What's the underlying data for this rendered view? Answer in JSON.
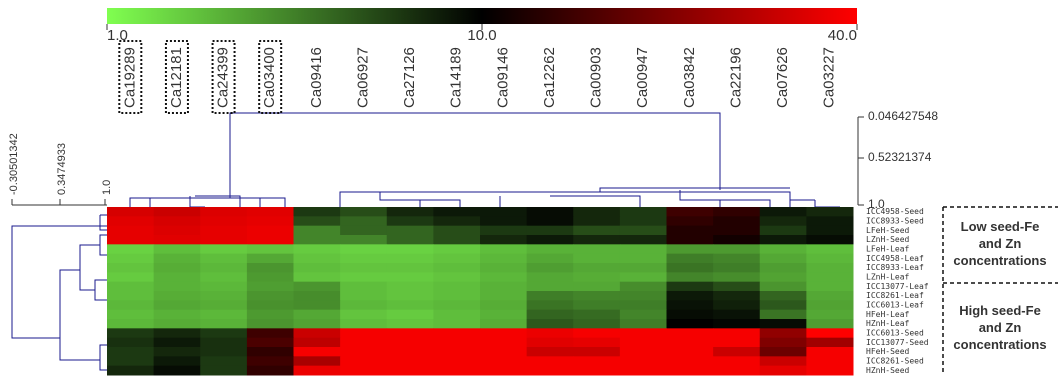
{
  "chart_data": {
    "type": "heatmap",
    "columns": [
      "Ca19289",
      "Ca12181",
      "Ca24399",
      "Ca03400",
      "Ca09416",
      "Ca06927",
      "Ca27126",
      "Ca14189",
      "Ca09146",
      "Ca12262",
      "Ca00903",
      "Ca00947",
      "Ca03842",
      "Ca22196",
      "Ca07626",
      "Ca03227"
    ],
    "boxed_columns": [
      0,
      1,
      2,
      3
    ],
    "rows": [
      "ICC4958-Seed",
      "ICC8933-Seed",
      "LFeH-Seed",
      "LZnH-Seed",
      "LFeH-Leaf",
      "ICC4958-Leaf",
      "ICC8933-Leaf",
      "LZnH-Leaf",
      "ICC13077-Leaf",
      "ICC8261-Leaf",
      "ICC6013-Leaf",
      "HFeH-Leaf",
      "HZnH-Leaf",
      "ICC6013-Seed",
      "ICC13077-Seed",
      "HFeH-Seed",
      "ICC8261-Seed",
      "HZnH-Seed"
    ],
    "values": [
      [
        32,
        30,
        33,
        34,
        6,
        5,
        7,
        8,
        8,
        9,
        7,
        6,
        14,
        13,
        8,
        7
      ],
      [
        34,
        32,
        34,
        35,
        5,
        4,
        6,
        7,
        8,
        9,
        7,
        6,
        13,
        12,
        7,
        8
      ],
      [
        35,
        33,
        35,
        36,
        3,
        4,
        4,
        5,
        6,
        6,
        5,
        5,
        12,
        12,
        6,
        8
      ],
      [
        35,
        34,
        35,
        36,
        3,
        3,
        4,
        5,
        7,
        8,
        7,
        7,
        12,
        11,
        8,
        9
      ],
      [
        1.5,
        1.8,
        1.6,
        1.7,
        1.6,
        1.5,
        1.5,
        1.6,
        1.8,
        2,
        2,
        2,
        2.5,
        2.5,
        2,
        1.8
      ],
      [
        1.6,
        2,
        1.8,
        2.2,
        1.7,
        1.6,
        1.6,
        1.7,
        1.9,
        2.2,
        2,
        2,
        3.2,
        3,
        2.2,
        1.9
      ],
      [
        1.7,
        2.1,
        1.9,
        2.6,
        1.8,
        1.7,
        1.7,
        1.8,
        2,
        2.4,
        2.2,
        2.2,
        3.5,
        3.2,
        2.4,
        2
      ],
      [
        1.6,
        2,
        1.8,
        2.5,
        1.7,
        1.6,
        1.6,
        1.7,
        1.9,
        2.2,
        2.1,
        2,
        3,
        2.8,
        2.3,
        2
      ],
      [
        1.8,
        2,
        1.9,
        2.4,
        2.6,
        1.8,
        1.7,
        1.8,
        2,
        2.2,
        2.2,
        2.8,
        6,
        5,
        2.6,
        2
      ],
      [
        1.8,
        2.1,
        2,
        2.6,
        2.8,
        1.8,
        1.7,
        1.8,
        2,
        3.2,
        3,
        3,
        8,
        7,
        4,
        2.2
      ],
      [
        1.9,
        2.2,
        2.1,
        2.7,
        2.8,
        1.9,
        1.8,
        1.9,
        2.1,
        3.5,
        3.2,
        3.2,
        8.5,
        7.5,
        4.5,
        2.3
      ],
      [
        1.8,
        2,
        1.9,
        2.5,
        2.2,
        1.7,
        1.6,
        1.8,
        2,
        4,
        3.8,
        3,
        9,
        8.5,
        3.5,
        2.2
      ],
      [
        1.9,
        2.1,
        2,
        2.6,
        2.3,
        1.8,
        1.7,
        1.8,
        2.1,
        4.5,
        4,
        3.2,
        10,
        9.5,
        9,
        2.4
      ],
      [
        6,
        7,
        6,
        14,
        30,
        38,
        38,
        38,
        38,
        36,
        38,
        38,
        38,
        38,
        22,
        40
      ],
      [
        6.5,
        8,
        6.5,
        15,
        28,
        38,
        38,
        38,
        38,
        34,
        35,
        38,
        38,
        38,
        20,
        24
      ],
      [
        6,
        7,
        6.5,
        13,
        38,
        38,
        38,
        38,
        38,
        30,
        30,
        38,
        38,
        30,
        18,
        38
      ],
      [
        6,
        8,
        6,
        14,
        25,
        38,
        38,
        38,
        38,
        38,
        38,
        38,
        38,
        38,
        30,
        38
      ],
      [
        7,
        9,
        6,
        13,
        36,
        38,
        38,
        38,
        38,
        38,
        38,
        38,
        38,
        38,
        35,
        38
      ]
    ],
    "colorscale": [
      "#80ff50",
      "#000000",
      "#ff0000"
    ],
    "clim": [
      1,
      40
    ],
    "cticks": [
      {
        "value": 1,
        "label": "1.0"
      },
      {
        "value": 10,
        "label": "10.0"
      },
      {
        "value": 40,
        "label": "40.0"
      }
    ],
    "column_dendrogram_scale": [
      "0.046427548",
      "0.52321374",
      "1.0"
    ],
    "row_dendrogram_scale": [
      "-0.30501342",
      "0.3474933",
      "1.0"
    ],
    "groups": [
      {
        "lines": [
          "Low seed-Fe",
          "and Zn",
          "concentrations"
        ],
        "rows": [
          0,
          7
        ]
      },
      {
        "lines": [
          "High seed-Fe",
          "and Zn",
          "concentrations"
        ],
        "rows": [
          8,
          17
        ]
      }
    ]
  }
}
